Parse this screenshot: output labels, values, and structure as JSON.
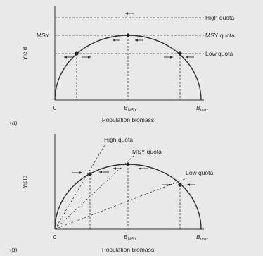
{
  "panel_a": {
    "panel_label": "(a)",
    "y_axis_label": "Yield",
    "x_axis_label": "Population biomass",
    "y_tick_msy": "MSY",
    "x_tick_zero": "0",
    "x_tick_bmsy_main": "B",
    "x_tick_bmsy_sub": "MSY",
    "x_tick_bmax_main": "B",
    "x_tick_bmax_sub": "max",
    "quota_high": "High quota",
    "quota_msy": "MSY quota",
    "quota_low": "Low quota"
  },
  "panel_b": {
    "panel_label": "(b)",
    "y_axis_label": "Yield",
    "x_axis_label": "Population biomass",
    "x_tick_zero": "0",
    "x_tick_bmsy_main": "B",
    "x_tick_bmsy_sub": "MSY",
    "x_tick_bmax_main": "B",
    "x_tick_bmax_sub": "max",
    "quota_high": "High quota",
    "quota_msy": "MSY quota",
    "quota_low": "Low quota"
  },
  "colors": {
    "background": "#e9e9e9",
    "ink": "#333333"
  }
}
